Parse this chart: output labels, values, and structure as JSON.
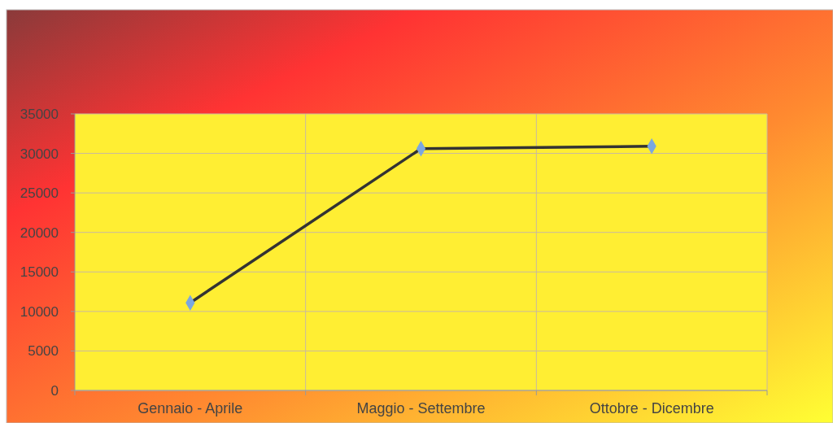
{
  "chart_data": {
    "type": "line",
    "categories": [
      "Gennaio - Aprile",
      "Maggio - Settembre",
      "Ottobre - Dicembre"
    ],
    "series": [
      {
        "color": "#333333",
        "values": [
          11100,
          30600,
          30900
        ]
      }
    ],
    "marker": "diamond",
    "grid": true,
    "ylim": [
      0,
      35000
    ],
    "yticks": [
      0,
      5000,
      10000,
      15000,
      20000,
      25000,
      30000,
      35000
    ]
  }
}
